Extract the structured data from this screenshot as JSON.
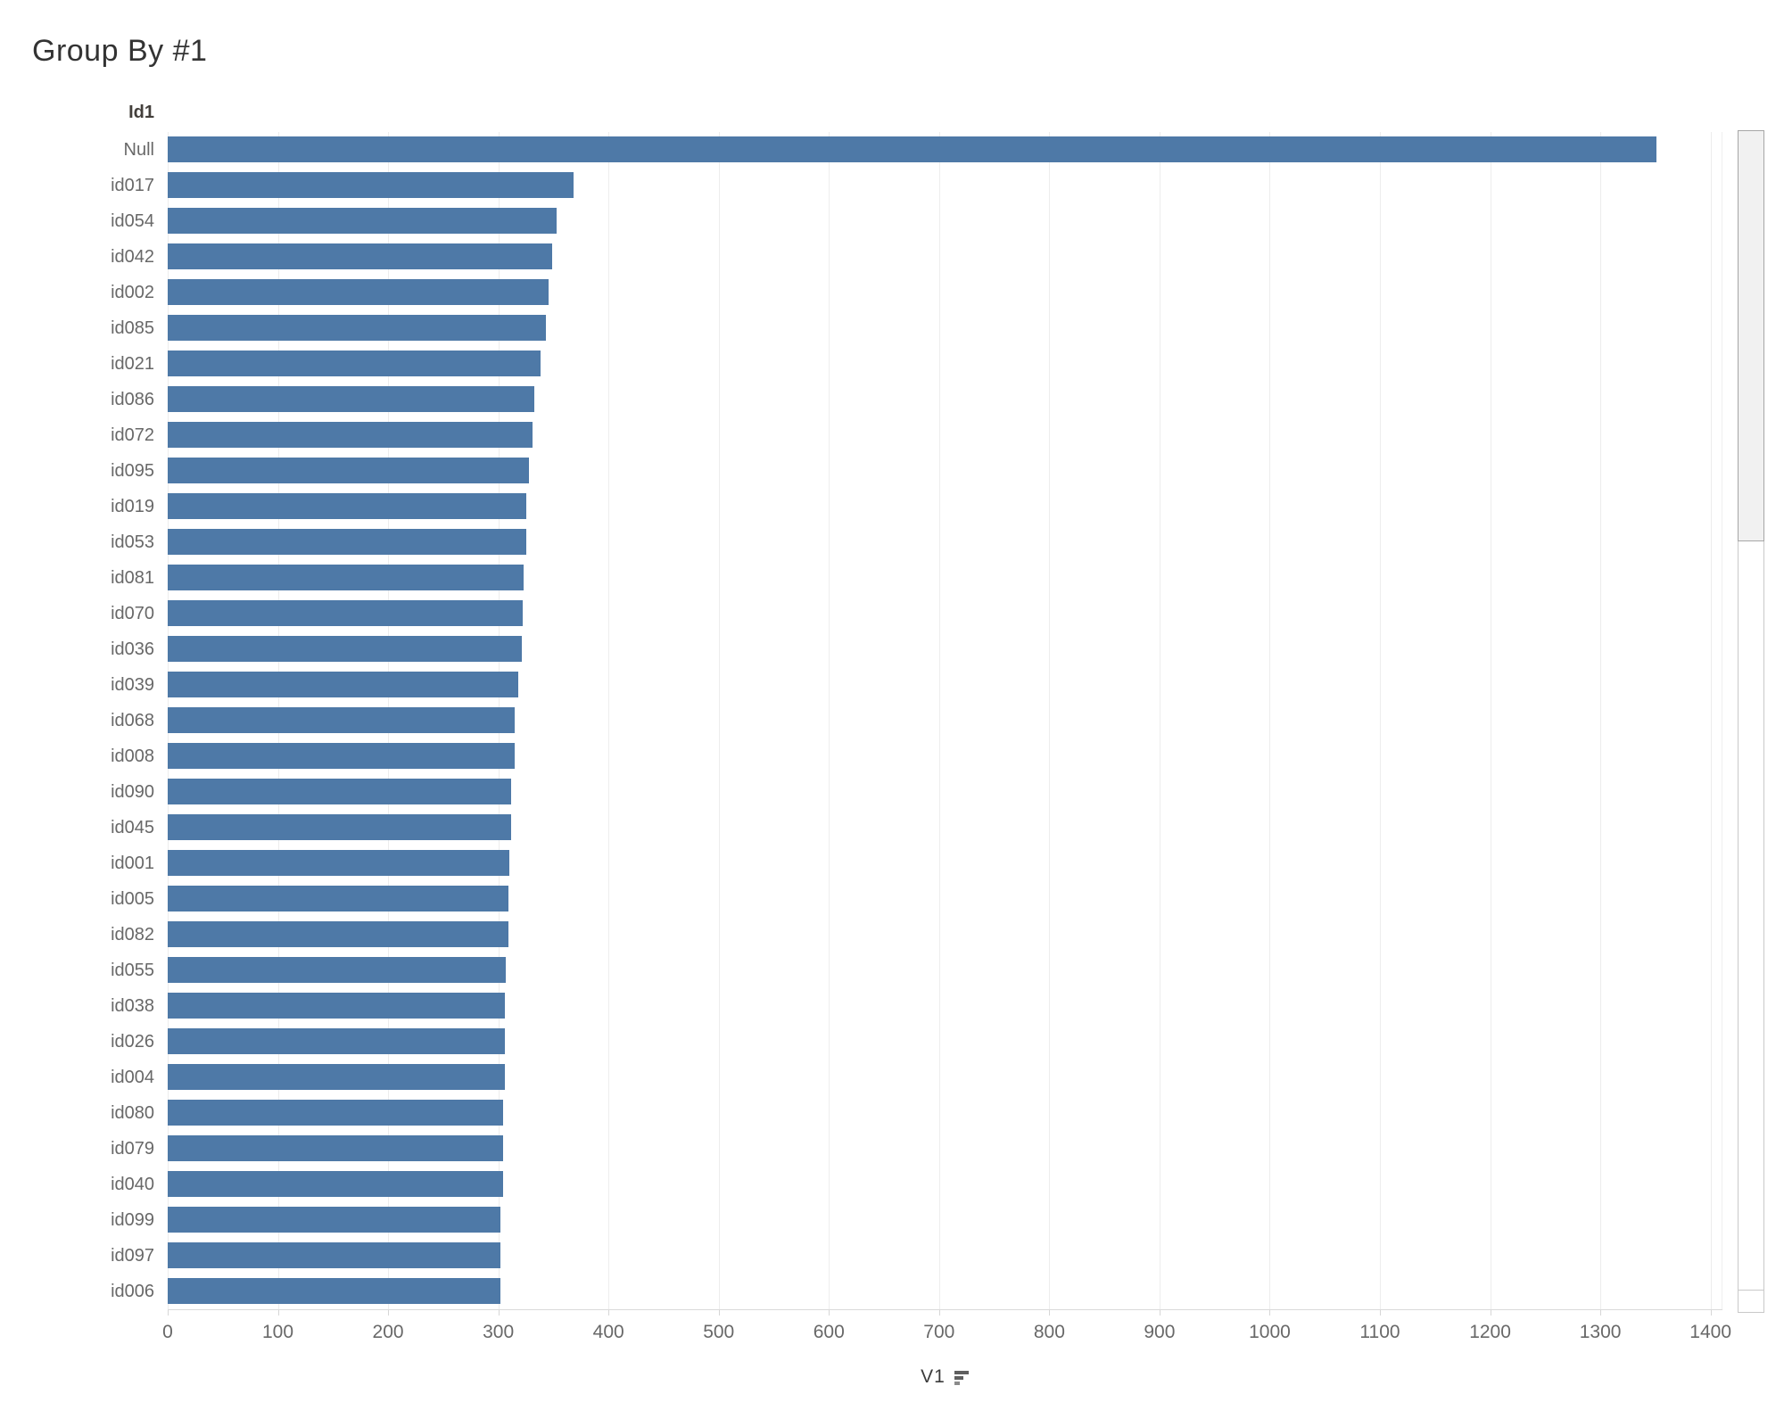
{
  "title": "Group By #1",
  "row_header": "Id1",
  "x_axis": {
    "label": "V1",
    "ticks": [
      0,
      100,
      200,
      300,
      400,
      500,
      600,
      700,
      800,
      900,
      1000,
      1100,
      1200,
      1300,
      1400
    ],
    "max": 1410,
    "sort_indicator": "descending"
  },
  "colors": {
    "bar": "#4e79a7",
    "gridline": "#ededed",
    "axis_text": "#686868",
    "header_text": "#433f3b",
    "title_text": "#333333"
  },
  "chart_data": {
    "type": "bar",
    "orientation": "horizontal",
    "title": "Group By #1",
    "xlabel": "V1",
    "ylabel": "Id1",
    "xlim": [
      0,
      1410
    ],
    "grid": true,
    "sort": "descending by V1",
    "bar_color": "#4e79a7",
    "categories": [
      "Null",
      "id017",
      "id054",
      "id042",
      "id002",
      "id085",
      "id021",
      "id086",
      "id072",
      "id095",
      "id019",
      "id053",
      "id081",
      "id070",
      "id036",
      "id039",
      "id068",
      "id008",
      "id090",
      "id045",
      "id001",
      "id005",
      "id082",
      "id055",
      "id038",
      "id026",
      "id004",
      "id080",
      "id079",
      "id040",
      "id099",
      "id097",
      "id006"
    ],
    "values": [
      1351,
      368,
      353,
      349,
      346,
      343,
      338,
      333,
      331,
      328,
      325,
      325,
      323,
      322,
      321,
      318,
      315,
      315,
      312,
      312,
      310,
      309,
      309,
      307,
      306,
      306,
      306,
      304,
      304,
      304,
      302,
      302,
      302
    ]
  }
}
